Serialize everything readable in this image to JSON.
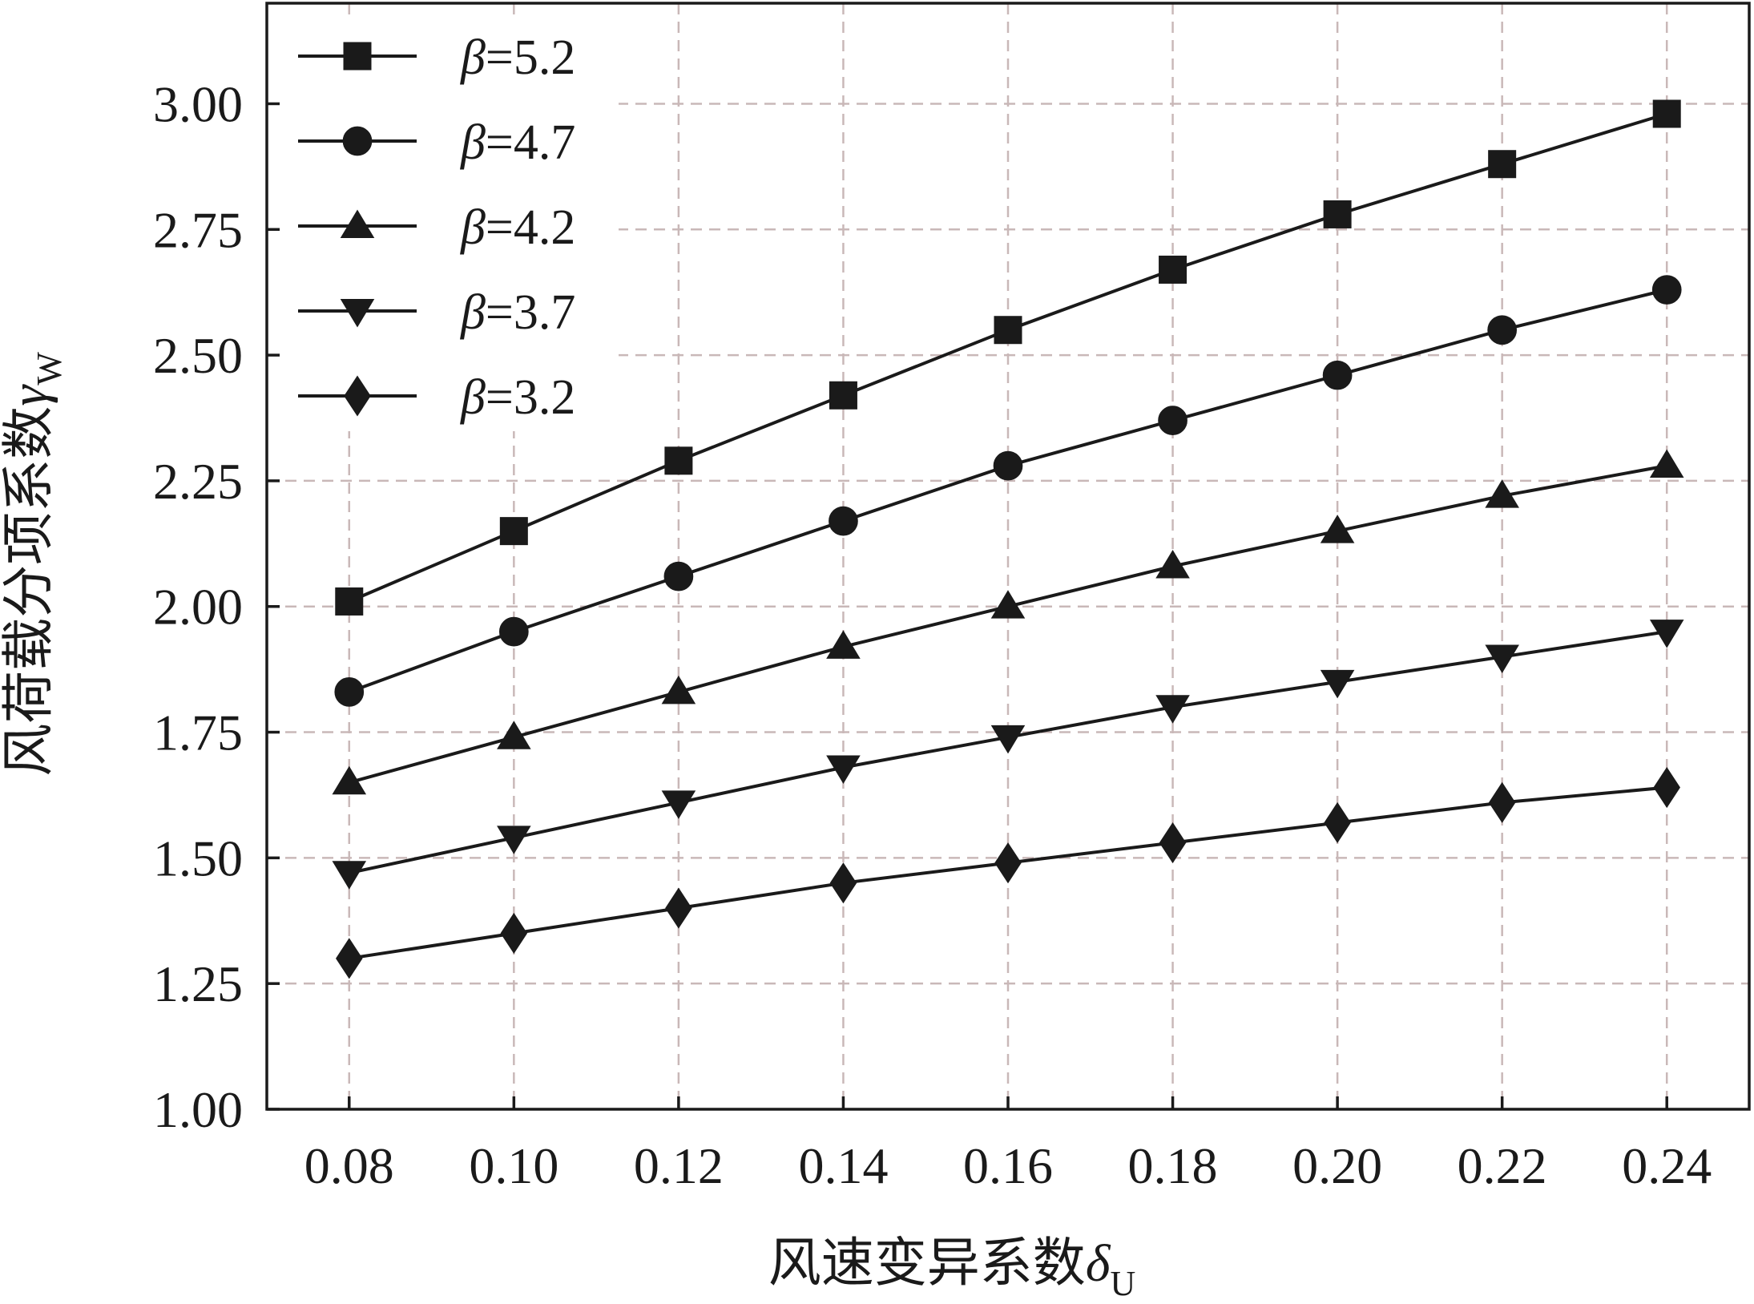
{
  "chart_data": {
    "type": "line",
    "title": "",
    "xlabel": {
      "main": "风速变异系数",
      "symbol": "δ",
      "subscript": "U"
    },
    "ylabel": {
      "main": "风荷载分项系数",
      "symbol": "γ",
      "subscript": "W"
    },
    "xlim": [
      0.07,
      0.25
    ],
    "ylim": [
      1.0,
      3.2
    ],
    "x_ticks": [
      "0.08",
      "0.10",
      "0.12",
      "0.14",
      "0.16",
      "0.18",
      "0.20",
      "0.22",
      "0.24"
    ],
    "y_ticks": [
      "1.00",
      "1.25",
      "1.50",
      "1.75",
      "2.00",
      "2.25",
      "2.50",
      "2.75",
      "3.00"
    ],
    "grid": true,
    "legend_position": "top-left",
    "x": [
      0.08,
      0.1,
      0.12,
      0.14,
      0.16,
      0.18,
      0.2,
      0.22,
      0.24
    ],
    "series": [
      {
        "name": "β=5.2",
        "marker": "square",
        "values": [
          2.01,
          2.15,
          2.29,
          2.42,
          2.55,
          2.67,
          2.78,
          2.88,
          2.98
        ]
      },
      {
        "name": "β=4.7",
        "marker": "circle",
        "values": [
          1.83,
          1.95,
          2.06,
          2.17,
          2.28,
          2.37,
          2.46,
          2.55,
          2.63
        ]
      },
      {
        "name": "β=4.2",
        "marker": "triangle-up",
        "values": [
          1.65,
          1.74,
          1.83,
          1.92,
          2.0,
          2.08,
          2.15,
          2.22,
          2.28
        ]
      },
      {
        "name": "β=3.7",
        "marker": "triangle-down",
        "values": [
          1.47,
          1.54,
          1.61,
          1.68,
          1.74,
          1.8,
          1.85,
          1.9,
          1.95
        ]
      },
      {
        "name": "β=3.2",
        "marker": "diamond",
        "values": [
          1.3,
          1.35,
          1.4,
          1.45,
          1.49,
          1.53,
          1.57,
          1.61,
          1.64
        ]
      }
    ],
    "colors": {
      "line": "#1a1a1a",
      "grid": "#c9b8b8",
      "axis": "#1a1a1a"
    }
  }
}
